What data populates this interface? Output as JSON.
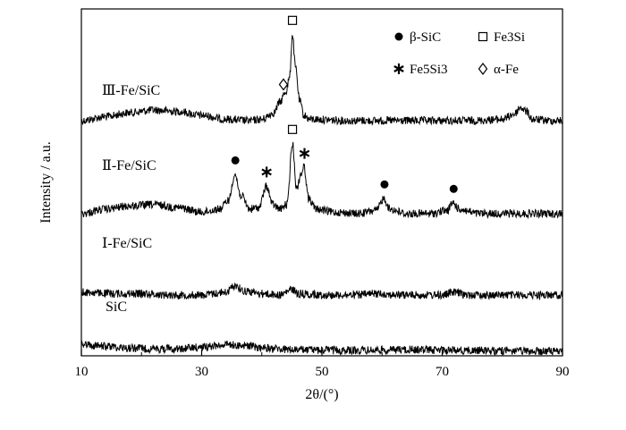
{
  "chart_data": {
    "type": "line",
    "xlabel": "2θ/(°)",
    "ylabel": "Intensity / a.u.",
    "xlim": [
      10,
      90
    ],
    "x_ticks": [
      "10",
      "30",
      "50",
      "70",
      "90"
    ],
    "grid": false,
    "legend": {
      "placement": "top-right",
      "items": [
        {
          "symbol": "circle",
          "label": "β-SiC"
        },
        {
          "symbol": "square",
          "label": "Fe3Si"
        },
        {
          "symbol": "star",
          "label": "Fe5Si3"
        },
        {
          "symbol": "diamond",
          "label": "α-Fe"
        }
      ]
    },
    "series": [
      {
        "name": "Ⅲ-Fe/SiC",
        "baseline": 0.3,
        "points": [
          [
            10,
            0.3
          ],
          [
            14,
            0.33
          ],
          [
            18,
            0.36
          ],
          [
            22,
            0.38
          ],
          [
            26,
            0.37
          ],
          [
            30,
            0.34
          ],
          [
            34,
            0.31
          ],
          [
            38,
            0.3
          ],
          [
            40,
            0.31
          ],
          [
            42,
            0.36
          ],
          [
            43,
            0.44
          ],
          [
            44,
            0.52
          ],
          [
            44.6,
            0.62
          ],
          [
            45.1,
            0.95
          ],
          [
            45.6,
            0.7
          ],
          [
            46.3,
            0.45
          ],
          [
            47,
            0.34
          ],
          [
            48,
            0.31
          ],
          [
            55,
            0.3
          ],
          [
            60,
            0.3
          ],
          [
            65,
            0.3
          ],
          [
            70,
            0.3
          ],
          [
            75,
            0.3
          ],
          [
            80,
            0.31
          ],
          [
            82,
            0.35
          ],
          [
            83,
            0.4
          ],
          [
            84,
            0.37
          ],
          [
            85,
            0.31
          ],
          [
            88,
            0.3
          ],
          [
            90,
            0.3
          ]
        ],
        "markers": [
          {
            "symbol": "square",
            "x": 45.1
          },
          {
            "symbol": "diamond",
            "x": 43.6
          }
        ]
      },
      {
        "name": "Ⅱ-Fe/SiC",
        "baseline": 0.24,
        "points": [
          [
            10,
            0.24
          ],
          [
            14,
            0.27
          ],
          [
            18,
            0.29
          ],
          [
            22,
            0.3
          ],
          [
            26,
            0.28
          ],
          [
            30,
            0.25
          ],
          [
            33,
            0.27
          ],
          [
            34.5,
            0.33
          ],
          [
            35.5,
            0.5
          ],
          [
            36.5,
            0.36
          ],
          [
            38,
            0.27
          ],
          [
            39.5,
            0.28
          ],
          [
            40.8,
            0.42
          ],
          [
            41.8,
            0.3
          ],
          [
            43,
            0.27
          ],
          [
            44.2,
            0.3
          ],
          [
            45.1,
            0.7
          ],
          [
            45.8,
            0.4
          ],
          [
            46.5,
            0.5
          ],
          [
            47,
            0.55
          ],
          [
            47.8,
            0.34
          ],
          [
            49,
            0.27
          ],
          [
            52,
            0.25
          ],
          [
            56,
            0.24
          ],
          [
            59,
            0.26
          ],
          [
            60.3,
            0.34
          ],
          [
            61.3,
            0.27
          ],
          [
            64,
            0.24
          ],
          [
            68,
            0.24
          ],
          [
            70.8,
            0.26
          ],
          [
            71.8,
            0.31
          ],
          [
            72.8,
            0.27
          ],
          [
            76,
            0.24
          ],
          [
            80,
            0.24
          ],
          [
            85,
            0.24
          ],
          [
            90,
            0.24
          ]
        ],
        "markers": [
          {
            "symbol": "circle",
            "x": 35.6
          },
          {
            "symbol": "star",
            "x": 40.8
          },
          {
            "symbol": "square",
            "x": 45.1
          },
          {
            "symbol": "star",
            "x": 47.1
          },
          {
            "symbol": "circle",
            "x": 60.4
          },
          {
            "symbol": "circle",
            "x": 71.9
          }
        ]
      },
      {
        "name": "Ⅰ-Fe/SiC",
        "baseline": 0.1,
        "points": [
          [
            10,
            0.12
          ],
          [
            15,
            0.11
          ],
          [
            20,
            0.11
          ],
          [
            25,
            0.1
          ],
          [
            30,
            0.1
          ],
          [
            34,
            0.12
          ],
          [
            35.6,
            0.17
          ],
          [
            37,
            0.13
          ],
          [
            40,
            0.11
          ],
          [
            43,
            0.1
          ],
          [
            45.1,
            0.14
          ],
          [
            46,
            0.11
          ],
          [
            50,
            0.1
          ],
          [
            55,
            0.1
          ],
          [
            60,
            0.11
          ],
          [
            62,
            0.1
          ],
          [
            66,
            0.1
          ],
          [
            70,
            0.1
          ],
          [
            72,
            0.12
          ],
          [
            74,
            0.1
          ],
          [
            80,
            0.1
          ],
          [
            85,
            0.1
          ],
          [
            90,
            0.1
          ]
        ],
        "markers": []
      },
      {
        "name": "SiC",
        "baseline": 0.0,
        "points": [
          [
            10,
            0.08
          ],
          [
            14,
            0.06
          ],
          [
            18,
            0.04
          ],
          [
            22,
            0.03
          ],
          [
            26,
            0.03
          ],
          [
            30,
            0.05
          ],
          [
            34,
            0.08
          ],
          [
            37,
            0.07
          ],
          [
            40,
            0.04
          ],
          [
            45,
            0.02
          ],
          [
            50,
            0.015
          ],
          [
            55,
            0.01
          ],
          [
            60,
            0.015
          ],
          [
            65,
            0.02
          ],
          [
            70,
            0.015
          ],
          [
            75,
            0.01
          ],
          [
            80,
            0.005
          ],
          [
            85,
            0.0
          ],
          [
            90,
            0.0
          ]
        ],
        "markers": []
      }
    ]
  }
}
